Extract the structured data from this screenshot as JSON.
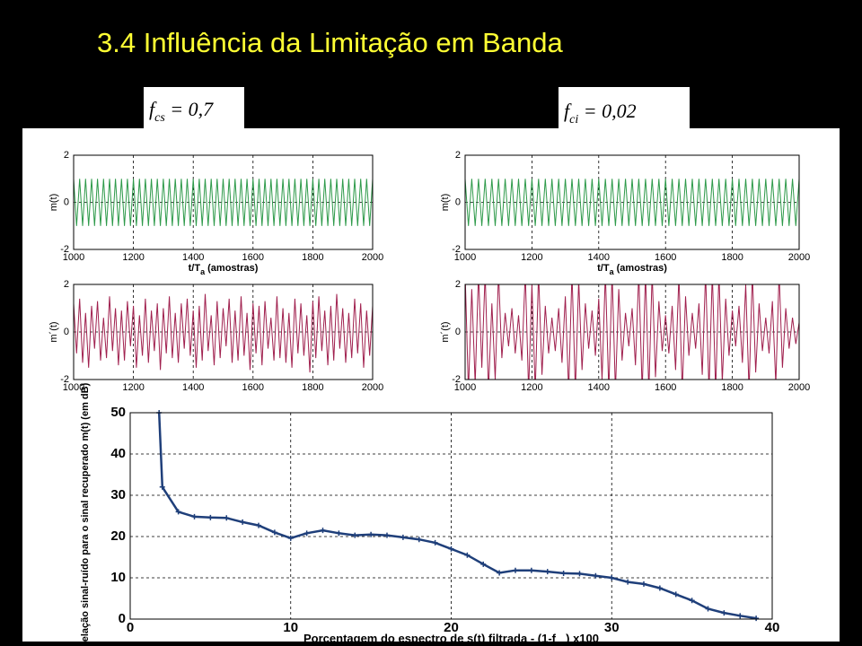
{
  "title": "3.4 Influência da Limitação em Banda",
  "annotations": [
    {
      "parts": [
        "f",
        "cs",
        " = 0,7"
      ]
    },
    {
      "parts": [
        "f",
        "ci",
        " = 0,02"
      ]
    }
  ],
  "chart_data": [
    {
      "type": "line",
      "color": "#2e9a4a",
      "ylabel": "m(t)",
      "xlabel_parts": [
        "t/T",
        "a",
        " (amostras)"
      ],
      "xlim": [
        1000,
        2000
      ],
      "ylim": [
        -2,
        2
      ],
      "xticks": [
        1000,
        1200,
        1400,
        1600,
        1800,
        2000
      ],
      "yticks": [
        -2,
        0,
        2
      ],
      "grid": true,
      "x": [
        1000,
        1010,
        1020,
        1030,
        1040,
        1050,
        1060,
        1070,
        1080,
        1090,
        1100,
        1110,
        1120,
        1130,
        1140,
        1150,
        1160,
        1170,
        1180,
        1190,
        1200,
        1210,
        1220,
        1230,
        1240,
        1250,
        1260,
        1270,
        1280,
        1290,
        1300,
        1310,
        1320,
        1330,
        1340,
        1350,
        1360,
        1370,
        1380,
        1390,
        1400,
        1410,
        1420,
        1430,
        1440,
        1450,
        1460,
        1470,
        1480,
        1490,
        1500,
        1510,
        1520,
        1530,
        1540,
        1550,
        1560,
        1570,
        1580,
        1590,
        1600,
        1610,
        1620,
        1630,
        1640,
        1650,
        1660,
        1670,
        1680,
        1690,
        1700,
        1710,
        1720,
        1730,
        1740,
        1750,
        1760,
        1770,
        1780,
        1790,
        1800,
        1810,
        1820,
        1830,
        1840,
        1850,
        1860,
        1870,
        1880,
        1890,
        1900,
        1910,
        1920,
        1930,
        1940,
        1950,
        1960,
        1970,
        1980,
        1990,
        2000
      ],
      "values": [
        1,
        -1,
        1,
        -1,
        1,
        -1,
        1,
        -1,
        1,
        -1,
        1,
        -1,
        1,
        -1,
        1,
        -1,
        1,
        -1,
        1,
        -1,
        1,
        -1,
        1,
        -1,
        1,
        -1,
        1,
        -1,
        1,
        -1,
        1,
        -1,
        1,
        -1,
        1,
        -1,
        1,
        -1,
        1,
        -1,
        1,
        -1,
        1,
        -1,
        1,
        -1,
        1,
        -1,
        1,
        -1,
        1,
        -1,
        1,
        -1,
        1,
        -1,
        1,
        -1,
        1,
        -1,
        1,
        -1,
        1,
        -1,
        1,
        -1,
        1,
        -1,
        1,
        -1,
        1,
        -1,
        1,
        -1,
        1,
        -1,
        1,
        -1,
        1,
        -1,
        1,
        -1,
        1,
        -1,
        1,
        -1,
        1,
        -1,
        1,
        -1,
        1,
        -1,
        1,
        -1,
        1,
        -1,
        1,
        -1,
        1,
        -1,
        1
      ]
    },
    {
      "type": "line",
      "color": "#a0204e",
      "ylabel": "m´(t)",
      "xlim": [
        1000,
        2000
      ],
      "ylim": [
        -2,
        2
      ],
      "xticks": [
        1000,
        1200,
        1400,
        1600,
        1800,
        2000
      ],
      "yticks": [
        -2,
        0,
        2
      ],
      "grid": true,
      "x": [
        1000,
        1010,
        1020,
        1030,
        1040,
        1050,
        1060,
        1070,
        1080,
        1090,
        1100,
        1110,
        1120,
        1130,
        1140,
        1150,
        1160,
        1170,
        1180,
        1190,
        1200,
        1210,
        1220,
        1230,
        1240,
        1250,
        1260,
        1270,
        1280,
        1290,
        1300,
        1310,
        1320,
        1330,
        1340,
        1350,
        1360,
        1370,
        1380,
        1390,
        1400,
        1410,
        1420,
        1430,
        1440,
        1450,
        1460,
        1470,
        1480,
        1490,
        1500,
        1510,
        1520,
        1530,
        1540,
        1550,
        1560,
        1570,
        1580,
        1590,
        1600,
        1610,
        1620,
        1630,
        1640,
        1650,
        1660,
        1670,
        1680,
        1690,
        1700,
        1710,
        1720,
        1730,
        1740,
        1750,
        1760,
        1770,
        1780,
        1790,
        1800,
        1810,
        1820,
        1830,
        1840,
        1850,
        1860,
        1870,
        1880,
        1890,
        1900,
        1910,
        1920,
        1930,
        1940,
        1950,
        1960,
        1970,
        1980,
        1990,
        2000
      ],
      "values": [
        1.2,
        -0.9,
        1.4,
        -1.3,
        0.8,
        -1.5,
        1.1,
        -0.7,
        1.3,
        -1.2,
        0.6,
        -1.1,
        1.5,
        -0.8,
        1.0,
        -1.4,
        0.9,
        -1.2,
        1.3,
        -0.6,
        1.1,
        -1.5,
        0.7,
        -1.0,
        1.4,
        -1.3,
        0.9,
        -0.8,
        1.2,
        -1.6,
        1.0,
        -0.9,
        1.5,
        -1.1,
        0.8,
        -1.3,
        1.2,
        -0.7,
        1.4,
        -1.0,
        0.9,
        -1.5,
        1.1,
        -1.2,
        1.6,
        -0.8,
        0.7,
        -1.4,
        1.3,
        -1.1,
        1.0,
        -0.6,
        1.4,
        -1.3,
        0.9,
        -1.2,
        1.5,
        -1.0,
        0.8,
        -1.6,
        1.2,
        -0.9,
        1.1,
        -1.4,
        1.3,
        -0.7,
        0.6,
        -1.2,
        1.5,
        -1.1,
        1.0,
        -1.3,
        0.8,
        -1.5,
        1.4,
        -0.9,
        1.2,
        -1.0,
        0.7,
        -1.7,
        1.3,
        -1.1,
        1.5,
        -0.8,
        0.9,
        -1.4,
        1.1,
        -1.2,
        1.6,
        -0.7,
        1.0,
        -1.3,
        0.8,
        -1.1,
        1.4,
        -0.9,
        1.2,
        -1.5,
        0.9,
        -1.0,
        1.1
      ]
    },
    {
      "type": "line",
      "color": "#2e9a4a",
      "ylabel": "m(t)",
      "xlabel_parts": [
        "t/T",
        "a",
        " (amostras)"
      ],
      "xlim": [
        1000,
        2000
      ],
      "ylim": [
        -2,
        2
      ],
      "xticks": [
        1000,
        1200,
        1400,
        1600,
        1800,
        2000
      ],
      "yticks": [
        -2,
        0,
        2
      ],
      "grid": true,
      "x": [
        1000,
        1010,
        1020,
        1030,
        1040,
        1050,
        1060,
        1070,
        1080,
        1090,
        1100,
        1110,
        1120,
        1130,
        1140,
        1150,
        1160,
        1170,
        1180,
        1190,
        1200,
        1210,
        1220,
        1230,
        1240,
        1250,
        1260,
        1270,
        1280,
        1290,
        1300,
        1310,
        1320,
        1330,
        1340,
        1350,
        1360,
        1370,
        1380,
        1390,
        1400,
        1410,
        1420,
        1430,
        1440,
        1450,
        1460,
        1470,
        1480,
        1490,
        1500,
        1510,
        1520,
        1530,
        1540,
        1550,
        1560,
        1570,
        1580,
        1590,
        1600,
        1610,
        1620,
        1630,
        1640,
        1650,
        1660,
        1670,
        1680,
        1690,
        1700,
        1710,
        1720,
        1730,
        1740,
        1750,
        1760,
        1770,
        1780,
        1790,
        1800,
        1810,
        1820,
        1830,
        1840,
        1850,
        1860,
        1870,
        1880,
        1890,
        1900,
        1910,
        1920,
        1930,
        1940,
        1950,
        1960,
        1970,
        1980,
        1990,
        2000
      ],
      "values": [
        1,
        -1,
        1,
        -1,
        1,
        -1,
        1,
        -1,
        1,
        -1,
        1,
        -1,
        1,
        -1,
        1,
        -1,
        1,
        -1,
        1,
        -1,
        1,
        -1,
        1,
        -1,
        1,
        -1,
        1,
        -1,
        1,
        -1,
        1,
        -1,
        1,
        -1,
        1,
        -1,
        1,
        -1,
        1,
        -1,
        1,
        -1,
        1,
        -1,
        1,
        -1,
        1,
        -1,
        1,
        -1,
        1,
        -1,
        1,
        -1,
        1,
        -1,
        1,
        -1,
        1,
        -1,
        1,
        -1,
        1,
        -1,
        1,
        -1,
        1,
        -1,
        1,
        -1,
        1,
        -1,
        1,
        -1,
        1,
        -1,
        1,
        -1,
        1,
        -1,
        1,
        -1,
        1,
        -1,
        1,
        -1,
        1,
        -1,
        1,
        -1,
        1,
        -1,
        1,
        -1,
        1,
        -1,
        1,
        -1,
        1,
        -1,
        1
      ]
    },
    {
      "type": "line",
      "color": "#a0204e",
      "ylabel": "m´(t)",
      "xlim": [
        1000,
        2000
      ],
      "ylim": [
        -2,
        2
      ],
      "xticks": [
        1000,
        1200,
        1400,
        1600,
        1800,
        2000
      ],
      "yticks": [
        -2,
        0,
        2
      ],
      "grid": true,
      "x": [
        1000,
        1010,
        1020,
        1030,
        1040,
        1050,
        1060,
        1070,
        1080,
        1090,
        1100,
        1110,
        1120,
        1130,
        1140,
        1150,
        1160,
        1170,
        1180,
        1190,
        1200,
        1210,
        1220,
        1230,
        1240,
        1250,
        1260,
        1270,
        1280,
        1290,
        1300,
        1310,
        1320,
        1330,
        1340,
        1350,
        1360,
        1370,
        1380,
        1390,
        1400,
        1410,
        1420,
        1430,
        1440,
        1450,
        1460,
        1470,
        1480,
        1490,
        1500,
        1510,
        1520,
        1530,
        1540,
        1550,
        1560,
        1570,
        1580,
        1590,
        1600,
        1610,
        1620,
        1630,
        1640,
        1650,
        1660,
        1670,
        1680,
        1690,
        1700,
        1710,
        1720,
        1730,
        1740,
        1750,
        1760,
        1770,
        1780,
        1790,
        1800,
        1810,
        1820,
        1830,
        1840,
        1850,
        1860,
        1870,
        1880,
        1890,
        1900,
        1910,
        1920,
        1930,
        1940,
        1950,
        1960,
        1970,
        1980,
        1990,
        2000
      ],
      "values": [
        2.5,
        -2.5,
        1.8,
        -2.2,
        2.5,
        -1.5,
        2.5,
        -2.5,
        1.2,
        -2.0,
        2.5,
        -1.1,
        0.8,
        -0.6,
        1.0,
        -0.9,
        0.7,
        -1.2,
        2.5,
        -2.5,
        2.0,
        -2.5,
        2.5,
        -1.8,
        1.1,
        -0.9,
        0.6,
        -0.8,
        1.0,
        -1.3,
        1.5,
        -2.5,
        2.5,
        -2.5,
        2.2,
        -1.6,
        1.2,
        -0.7,
        0.9,
        -1.0,
        1.4,
        -2.0,
        2.5,
        -2.5,
        2.5,
        -2.5,
        1.8,
        -1.2,
        0.8,
        -0.6,
        1.0,
        -1.4,
        2.5,
        -2.5,
        2.5,
        -2.5,
        2.5,
        -1.9,
        1.3,
        -0.8,
        0.7,
        -0.9,
        1.1,
        -1.6,
        2.4,
        -2.5,
        1.5,
        -1.0,
        0.8,
        -0.7,
        1.2,
        -1.8,
        2.5,
        -2.5,
        2.5,
        -2.5,
        2.5,
        -2.1,
        1.4,
        -1.0,
        0.9,
        -0.6,
        1.1,
        -1.3,
        2.0,
        -2.5,
        2.5,
        -1.7,
        1.2,
        -0.8,
        0.6,
        -0.9,
        1.3,
        -2.2,
        2.5,
        -1.5,
        1.0,
        -0.7,
        0.6,
        -0.5,
        0.4
      ]
    },
    {
      "type": "line",
      "color": "#1f3f7a",
      "markers": "+",
      "ylabel": "Relação sinal-ruído para o sinal recuperado m(t) (em dB)",
      "xlabel_parts": [
        "Porcentagem do espectro de s(t) filtrada -  (1-f",
        "cs",
        ") x100"
      ],
      "xlim": [
        0,
        40
      ],
      "ylim": [
        0,
        50
      ],
      "xticks": [
        0,
        10,
        20,
        30,
        40
      ],
      "yticks": [
        0,
        10,
        20,
        30,
        40,
        50
      ],
      "grid": true,
      "x": [
        1.8,
        2,
        3,
        4,
        5,
        6,
        7,
        8,
        9,
        10,
        11,
        12,
        13,
        14,
        15,
        16,
        17,
        18,
        19,
        20,
        21,
        22,
        23,
        24,
        25,
        26,
        27,
        28,
        29,
        30,
        31,
        32,
        33,
        34,
        35,
        36,
        37,
        38,
        39
      ],
      "values": [
        50,
        32,
        26,
        24.8,
        24.6,
        24.5,
        23.5,
        22.7,
        21,
        19.6,
        20.8,
        21.5,
        20.8,
        20.3,
        20.5,
        20.3,
        19.8,
        19.3,
        18.5,
        17,
        15.5,
        13.3,
        11.2,
        11.8,
        11.8,
        11.5,
        11.1,
        11,
        10.5,
        10,
        9,
        8.5,
        7.5,
        6,
        4.5,
        2.5,
        1.5,
        0.8,
        0.2
      ]
    }
  ]
}
